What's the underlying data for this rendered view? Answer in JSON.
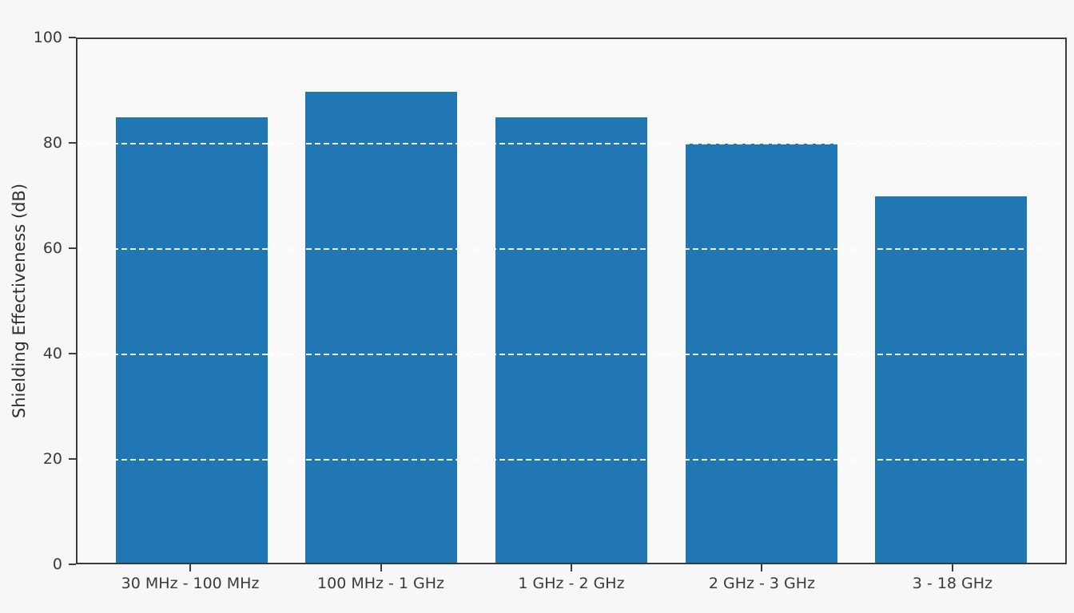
{
  "chart_data": {
    "type": "bar",
    "title": "",
    "xlabel": "",
    "ylabel": "Shielding Effectiveness (dB)",
    "categories": [
      "30 MHz - 100 MHz",
      "100 MHz - 1 GHz",
      "1 GHz - 2 GHz",
      "2 GHz - 3 GHz",
      "3 - 18 GHz"
    ],
    "values": [
      85,
      90,
      85,
      80,
      70
    ],
    "ylim": [
      0,
      100
    ],
    "yticks": [
      0,
      20,
      40,
      60,
      80,
      100
    ],
    "gridline_values": [
      20,
      40,
      60,
      80
    ],
    "grid_style": "horizontal-dashed-white-over-bars",
    "xlim": [
      -0.6,
      4.6
    ],
    "bar_width_ratio": 0.8,
    "legend": "none",
    "colors": {
      "bar": "#2176b4",
      "figure_background": "#f7f7f7",
      "plot_background": "#f9f9f9",
      "axis": "#3c3c3c",
      "tick_text": "#3a3a3a",
      "gridline": "#ffffff"
    }
  }
}
